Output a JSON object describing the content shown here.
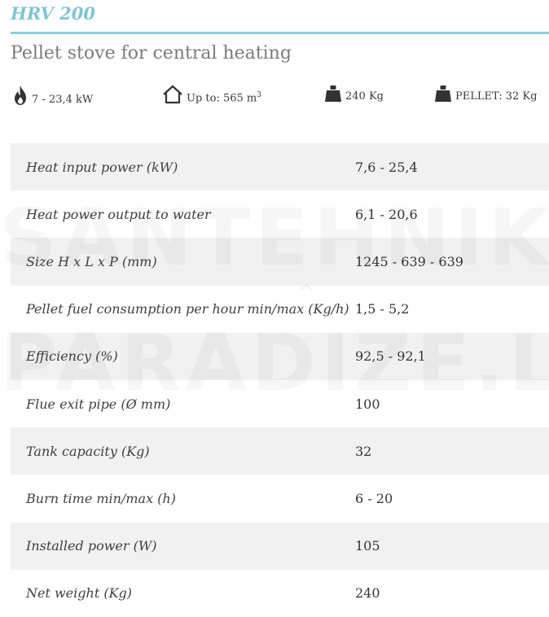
{
  "header": {
    "model": "HRV 200",
    "subtitle": "Pellet stove for central heating"
  },
  "specs": [
    {
      "icon": "flame-icon",
      "text": "7 - 23,4 kW"
    },
    {
      "icon": "house-icon",
      "text": "Up to: 565 m",
      "sup": "3"
    },
    {
      "icon": "weight-icon",
      "text": "240 Kg"
    },
    {
      "icon": "weight-icon",
      "text": "PELLET: 32 Kg"
    }
  ],
  "table": {
    "rows": [
      {
        "label": "Heat input power (kW)",
        "value": "7,6 - 25,4"
      },
      {
        "label": "Heat power output to water",
        "value": "6,1 - 20,6"
      },
      {
        "label": "Size H x L x P (mm)",
        "value": "1245 - 639 - 639"
      },
      {
        "label": "Pellet fuel consumption per hour min/max (Kg/h)",
        "value": "1,5 - 5,2"
      },
      {
        "label": "Efficiency (%)",
        "value": "92,5 - 92,1"
      },
      {
        "label": "Flue exit pipe (Ø mm)",
        "value": "100"
      },
      {
        "label": "Tank capacity (Kg)",
        "value": "32"
      },
      {
        "label": "Burn time min/max (h)",
        "value": "6 - 20"
      },
      {
        "label": "Installed power (W)",
        "value": "105"
      },
      {
        "label": "Net weight (Kg)",
        "value": "240"
      }
    ]
  },
  "watermark": {
    "line1": "SANTEHNIKAS",
    "line2": "PARADIZE.LV"
  },
  "colors": {
    "accent": "#7ec6d0",
    "rule": "#8fcdd4",
    "row_shade": "#f1f1f1"
  }
}
